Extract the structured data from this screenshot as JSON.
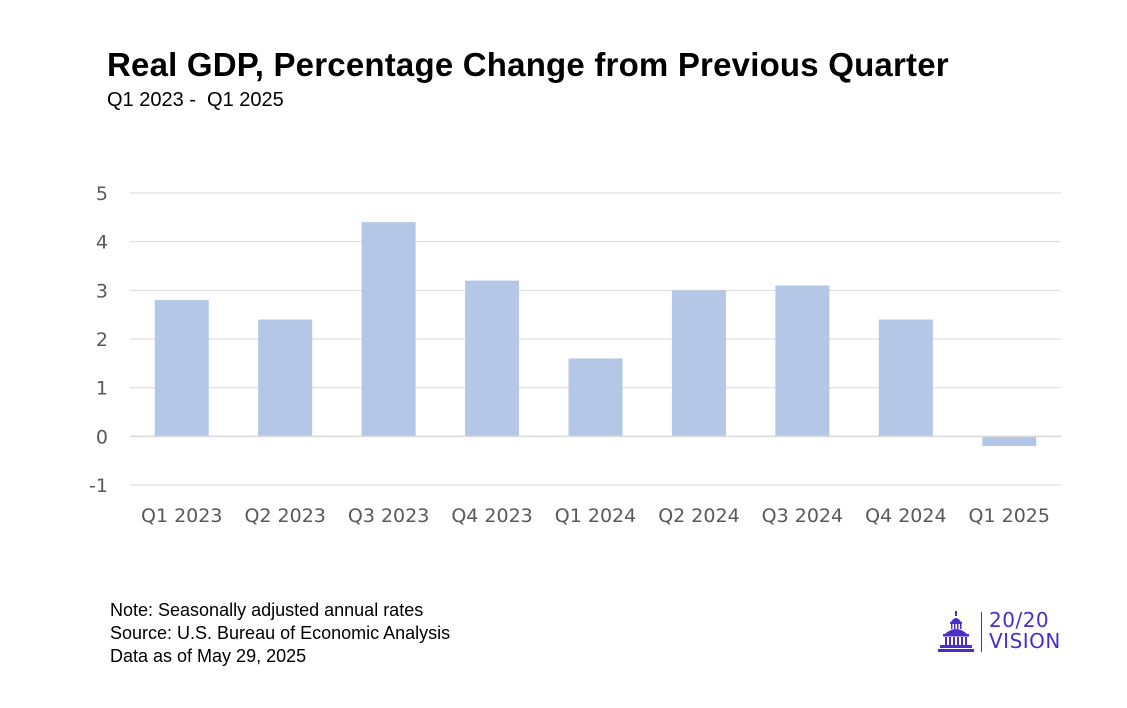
{
  "header": {
    "title": "Real GDP, Percentage Change from Previous Quarter",
    "subtitle": "Q1 2023 -  Q1 2025"
  },
  "footer": {
    "note": "Note: Seasonally adjusted annual rates",
    "source": "Source: U.S. Bureau of Economic Analysis",
    "date": "Data as of May 29, 2025"
  },
  "logo": {
    "line1": "20/20",
    "line2": "VISION",
    "icon": "capitol-dome-icon",
    "color": "#4a2ec7"
  },
  "colors": {
    "bar": "#b4c7e7",
    "grid": "#d9d9d9",
    "axis": "#d9d9d9",
    "tick_text": "#595959"
  },
  "chart_data": {
    "type": "bar",
    "title": "Real GDP, Percentage Change from Previous Quarter",
    "subtitle": "Q1 2023 -  Q1 2025",
    "xlabel": "",
    "ylabel": "",
    "categories": [
      "Q1 2023",
      "Q2 2023",
      "Q3 2023",
      "Q4 2023",
      "Q1 2024",
      "Q2 2024",
      "Q3 2024",
      "Q4 2024",
      "Q1 2025"
    ],
    "values": [
      2.8,
      2.4,
      4.4,
      3.2,
      1.6,
      3.0,
      3.1,
      2.4,
      -0.2
    ],
    "ylim": [
      -1,
      5
    ],
    "yticks": [
      5,
      4,
      3,
      2,
      1,
      0,
      -1
    ],
    "grid": true,
    "legend": "none"
  }
}
